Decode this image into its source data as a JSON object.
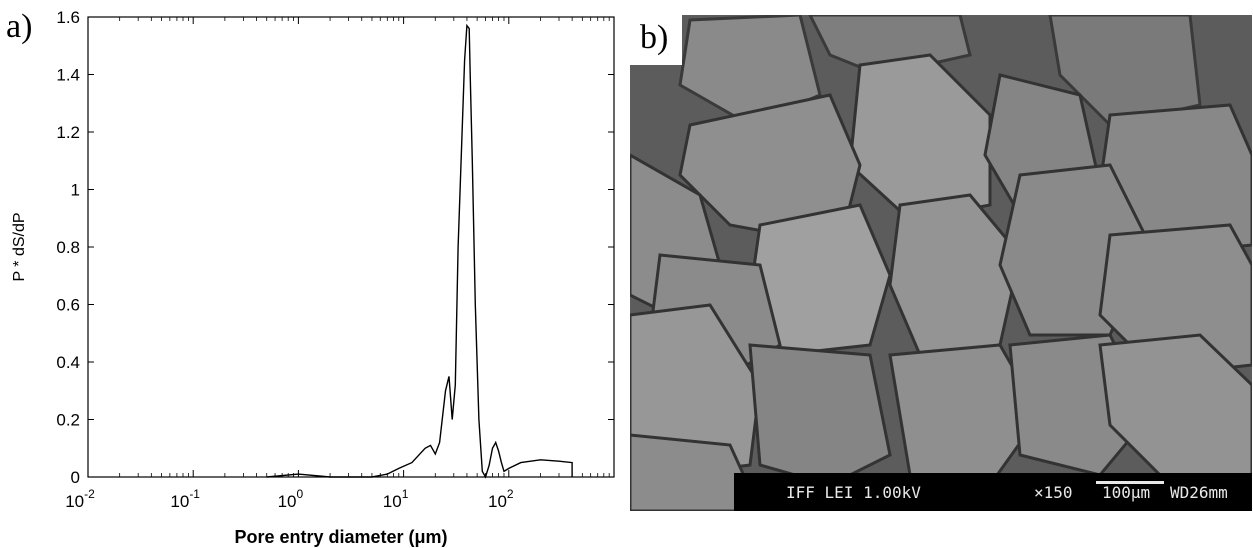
{
  "panel_a": {
    "label": "a)",
    "chart_data": {
      "type": "line",
      "title": "",
      "xlabel": "Pore entry diameter (μm)",
      "ylabel": "P * dS/dP",
      "xscale": "log",
      "xlim": [
        0.01,
        1000
      ],
      "ylim": [
        0,
        1.6
      ],
      "x_ticks": [
        {
          "base": "10",
          "exp": "-2",
          "value": 0.01
        },
        {
          "base": "10",
          "exp": "-1",
          "value": 0.1
        },
        {
          "base": "10",
          "exp": "0",
          "value": 1
        },
        {
          "base": "10",
          "exp": "1",
          "value": 10
        },
        {
          "base": "10",
          "exp": "2",
          "value": 100
        }
      ],
      "y_ticks": [
        "0",
        "0.2",
        "0.4",
        "0.6",
        "0.8",
        "1",
        "1.2",
        "1.4",
        "1.6"
      ],
      "grid": false,
      "legend": "none",
      "series": [
        {
          "x": [
            0.5,
            1,
            2,
            5,
            7,
            9,
            12,
            16,
            18,
            20,
            22,
            25,
            27,
            29,
            31,
            33,
            36,
            38,
            40,
            42,
            43,
            45,
            48,
            52,
            56,
            60,
            65,
            70,
            75,
            80,
            85,
            90,
            100,
            130,
            200,
            300,
            400,
            400
          ],
          "y": [
            0.0,
            0.01,
            0.0,
            0.0,
            0.01,
            0.03,
            0.05,
            0.1,
            0.11,
            0.08,
            0.12,
            0.3,
            0.35,
            0.2,
            0.32,
            0.8,
            1.2,
            1.45,
            1.57,
            1.56,
            1.4,
            1.1,
            0.6,
            0.2,
            0.02,
            0.0,
            0.04,
            0.1,
            0.12,
            0.09,
            0.05,
            0.02,
            0.03,
            0.05,
            0.06,
            0.055,
            0.05,
            0.0
          ]
        }
      ]
    }
  },
  "panel_b": {
    "label": "b)",
    "info_bar": {
      "instrument": "IFF LEI 1.00kV",
      "magnification": "×150",
      "scale": "100μm",
      "wd": "WD26mm"
    }
  }
}
